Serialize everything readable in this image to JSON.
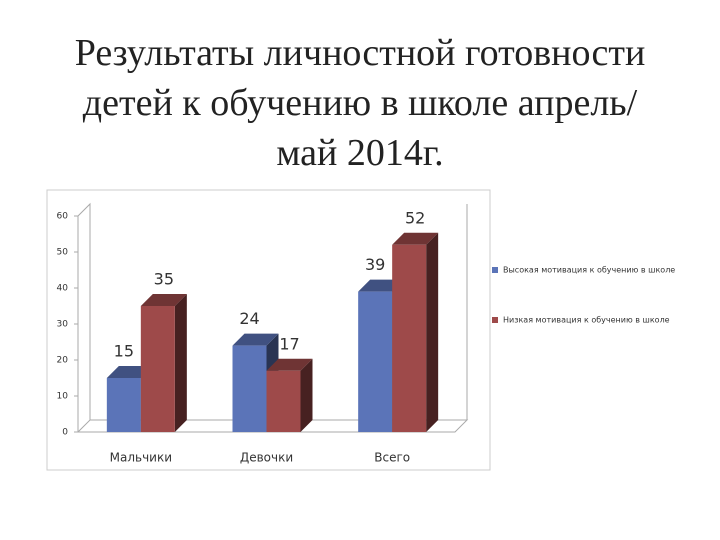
{
  "chart_data": {
    "type": "bar3d",
    "title": "Результаты личностной готовности детей к обучению в школе апрель/май 2014г.",
    "categories": [
      "Мальчики",
      "Девочки",
      "Всего"
    ],
    "series": [
      {
        "name": "Высокая мотивация к обучению в школе",
        "color": "#5b74b8",
        "values": [
          15,
          24,
          39
        ]
      },
      {
        "name": "Низкая мотивация к обучению в школе",
        "color": "#9e4a4a",
        "values": [
          35,
          17,
          52
        ]
      }
    ],
    "ylim": [
      0,
      60
    ],
    "yticks": [
      0,
      10,
      20,
      30,
      40,
      50,
      60
    ],
    "legend": "right"
  }
}
